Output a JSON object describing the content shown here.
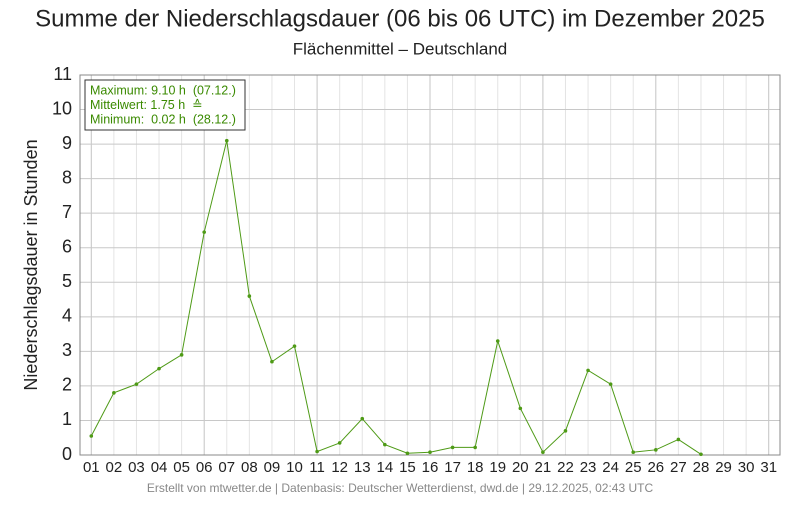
{
  "chart_data": {
    "type": "line",
    "title": "Summe der Niederschlagsdauer (06 bis 06 UTC) im Dezember 2025",
    "subtitle": "Flächenmittel – Deutschland",
    "y_label": "Niederschlagsdauer in Stunden",
    "annotations": [
      "Maximum: 9.10 h  (07.12.)",
      "Mittelwert: 1.75 h  ≙",
      "Minimum:  0.02 h  (28.12.)"
    ],
    "footer": "Erstellt von mtwetter.de | Datenbasis: Deutscher Wetterdienst, dwd.de | 29.12.2025, 02:43 UTC",
    "categories": [
      "01",
      "02",
      "03",
      "04",
      "05",
      "06",
      "07",
      "08",
      "09",
      "10",
      "11",
      "12",
      "13",
      "14",
      "15",
      "16",
      "17",
      "18",
      "19",
      "20",
      "21",
      "22",
      "23",
      "24",
      "25",
      "26",
      "27",
      "28",
      "29",
      "30",
      "31"
    ],
    "series": [
      {
        "name": "Niederschlagsdauer",
        "color": "#4e9a16",
        "values": [
          0.55,
          1.8,
          2.05,
          2.5,
          2.9,
          6.45,
          9.1,
          4.6,
          2.7,
          3.15,
          0.1,
          0.35,
          1.05,
          0.3,
          0.05,
          0.08,
          0.22,
          0.22,
          3.3,
          1.35,
          0.08,
          0.7,
          2.45,
          2.05,
          0.08,
          0.15,
          0.45,
          0.02,
          null,
          null,
          null
        ]
      }
    ],
    "ylim": [
      0,
      11
    ],
    "yticks": [
      0,
      1,
      2,
      3,
      4,
      5,
      6,
      7,
      8,
      9,
      10,
      11
    ],
    "grid": true
  }
}
